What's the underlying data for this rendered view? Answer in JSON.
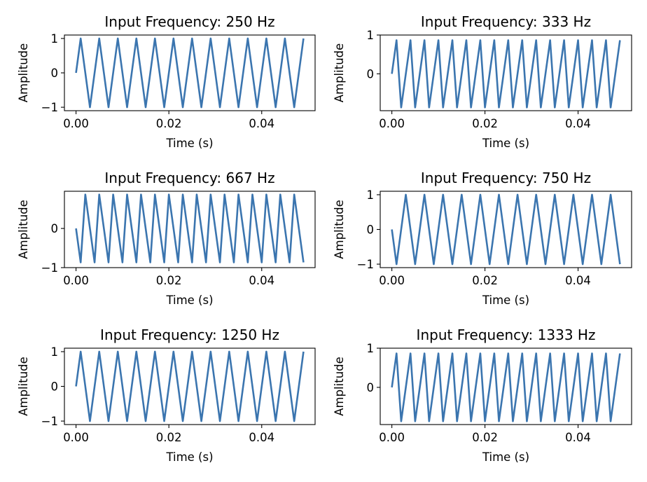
{
  "figure": {
    "background": "#ffffff",
    "line_color": "#3b75af"
  },
  "chart_data": [
    {
      "type": "line",
      "title": "Input Frequency: 250 Hz",
      "xlabel": "Time (s)",
      "ylabel": "Amplitude",
      "xlim": [
        -0.0025,
        0.0515
      ],
      "ylim": [
        -1.1,
        1.1
      ],
      "xticks": [
        0.0,
        0.02,
        0.04
      ],
      "xtick_labels": [
        "0.00",
        "0.02",
        "0.04"
      ],
      "yticks": [
        -1,
        0,
        1
      ],
      "ytick_labels": [
        "−1",
        "0",
        "1"
      ],
      "series": [
        {
          "x": [
            0,
            0.001,
            0.002,
            0.003,
            0.004,
            0.005,
            0.006,
            0.007,
            0.008,
            0.009,
            0.01,
            0.011,
            0.012,
            0.013,
            0.014,
            0.015,
            0.016,
            0.017,
            0.018,
            0.019,
            0.02,
            0.021,
            0.022,
            0.023,
            0.024,
            0.025,
            0.026,
            0.027,
            0.028,
            0.029,
            0.03,
            0.031,
            0.032,
            0.033,
            0.034,
            0.035,
            0.036,
            0.037,
            0.038,
            0.039,
            0.04,
            0.041,
            0.042,
            0.043,
            0.044,
            0.045,
            0.046,
            0.047,
            0.048,
            0.049
          ],
          "y": [
            0,
            1,
            0,
            -1,
            0,
            1,
            0,
            -1,
            0,
            1,
            0,
            -1,
            0,
            1,
            0,
            -1,
            0,
            1,
            0,
            -1,
            0,
            1,
            0,
            -1,
            0,
            1,
            0,
            -1,
            0,
            1,
            0,
            -1,
            0,
            1,
            0,
            -1,
            0,
            1,
            0,
            -1,
            0,
            1,
            0,
            -1,
            0,
            1,
            0,
            -1,
            0,
            1
          ]
        }
      ]
    },
    {
      "type": "line",
      "title": "Input Frequency: 333 Hz",
      "xlabel": "Time (s)",
      "ylabel": "Amplitude",
      "xlim": [
        -0.0025,
        0.0515
      ],
      "ylim": [
        -0.95,
        1.0
      ],
      "xticks": [
        0.0,
        0.02,
        0.04
      ],
      "xtick_labels": [
        "0.00",
        "0.02",
        "0.04"
      ],
      "yticks": [
        0,
        1
      ],
      "ytick_labels": [
        "0",
        "1"
      ],
      "series": [
        {
          "x": [
            0,
            0.001,
            0.002,
            0.003,
            0.004,
            0.005,
            0.006,
            0.007,
            0.008,
            0.009,
            0.01,
            0.011,
            0.012,
            0.013,
            0.014,
            0.015,
            0.016,
            0.017,
            0.018,
            0.019,
            0.02,
            0.021,
            0.022,
            0.023,
            0.024,
            0.025,
            0.026,
            0.027,
            0.028,
            0.029,
            0.03,
            0.031,
            0.032,
            0.033,
            0.034,
            0.035,
            0.036,
            0.037,
            0.038,
            0.039,
            0.04,
            0.041,
            0.042,
            0.043,
            0.044,
            0.045,
            0.046,
            0.047,
            0.048,
            0.049
          ],
          "y": [
            0,
            0.866,
            -0.866,
            0,
            0.866,
            -0.866,
            0,
            0.866,
            -0.866,
            0,
            0.866,
            -0.866,
            0,
            0.866,
            -0.866,
            0,
            0.866,
            -0.866,
            0,
            0.866,
            -0.866,
            0,
            0.866,
            -0.866,
            0,
            0.866,
            -0.866,
            0,
            0.866,
            -0.866,
            0,
            0.866,
            -0.866,
            0,
            0.866,
            -0.866,
            0,
            0.866,
            -0.866,
            0,
            0.866,
            -0.866,
            0,
            0.866,
            -0.866,
            0,
            0.866,
            -0.866,
            0,
            0.866
          ]
        }
      ]
    },
    {
      "type": "line",
      "title": "Input Frequency: 667 Hz",
      "xlabel": "Time (s)",
      "ylabel": "Amplitude",
      "xlim": [
        -0.0025,
        0.0515
      ],
      "ylim": [
        -1.0,
        0.95
      ],
      "xticks": [
        0.0,
        0.02,
        0.04
      ],
      "xtick_labels": [
        "0.00",
        "0.02",
        "0.04"
      ],
      "yticks": [
        -1,
        0
      ],
      "ytick_labels": [
        "−1",
        "0"
      ],
      "series": [
        {
          "x": [
            0,
            0.001,
            0.002,
            0.003,
            0.004,
            0.005,
            0.006,
            0.007,
            0.008,
            0.009,
            0.01,
            0.011,
            0.012,
            0.013,
            0.014,
            0.015,
            0.016,
            0.017,
            0.018,
            0.019,
            0.02,
            0.021,
            0.022,
            0.023,
            0.024,
            0.025,
            0.026,
            0.027,
            0.028,
            0.029,
            0.03,
            0.031,
            0.032,
            0.033,
            0.034,
            0.035,
            0.036,
            0.037,
            0.038,
            0.039,
            0.04,
            0.041,
            0.042,
            0.043,
            0.044,
            0.045,
            0.046,
            0.047,
            0.048,
            0.049
          ],
          "y": [
            0,
            -0.866,
            0.866,
            0,
            -0.866,
            0.866,
            0,
            -0.866,
            0.866,
            0,
            -0.866,
            0.866,
            0,
            -0.866,
            0.866,
            0,
            -0.866,
            0.866,
            0,
            -0.866,
            0.866,
            0,
            -0.866,
            0.866,
            0,
            -0.866,
            0.866,
            0,
            -0.866,
            0.866,
            0,
            -0.866,
            0.866,
            0,
            -0.866,
            0.866,
            0,
            -0.866,
            0.866,
            0,
            -0.866,
            0.866,
            0,
            -0.866,
            0.866,
            0,
            -0.866,
            0.866,
            0,
            -0.866
          ]
        }
      ]
    },
    {
      "type": "line",
      "title": "Input Frequency: 750 Hz",
      "xlabel": "Time (s)",
      "ylabel": "Amplitude",
      "xlim": [
        -0.0025,
        0.0515
      ],
      "ylim": [
        -1.1,
        1.1
      ],
      "xticks": [
        0.0,
        0.02,
        0.04
      ],
      "xtick_labels": [
        "0.00",
        "0.02",
        "0.04"
      ],
      "yticks": [
        -1,
        0,
        1
      ],
      "ytick_labels": [
        "−1",
        "0",
        "1"
      ],
      "series": [
        {
          "x": [
            0,
            0.001,
            0.002,
            0.003,
            0.004,
            0.005,
            0.006,
            0.007,
            0.008,
            0.009,
            0.01,
            0.011,
            0.012,
            0.013,
            0.014,
            0.015,
            0.016,
            0.017,
            0.018,
            0.019,
            0.02,
            0.021,
            0.022,
            0.023,
            0.024,
            0.025,
            0.026,
            0.027,
            0.028,
            0.029,
            0.03,
            0.031,
            0.032,
            0.033,
            0.034,
            0.035,
            0.036,
            0.037,
            0.038,
            0.039,
            0.04,
            0.041,
            0.042,
            0.043,
            0.044,
            0.045,
            0.046,
            0.047,
            0.048,
            0.049
          ],
          "y": [
            0,
            -1,
            0,
            1,
            0,
            -1,
            0,
            1,
            0,
            -1,
            0,
            1,
            0,
            -1,
            0,
            1,
            0,
            -1,
            0,
            1,
            0,
            -1,
            0,
            1,
            0,
            -1,
            0,
            1,
            0,
            -1,
            0,
            1,
            0,
            -1,
            0,
            1,
            0,
            -1,
            0,
            1,
            0,
            -1,
            0,
            1,
            0,
            -1,
            0,
            1,
            0,
            -1
          ]
        }
      ]
    },
    {
      "type": "line",
      "title": "Input Frequency: 1250 Hz",
      "xlabel": "Time (s)",
      "ylabel": "Amplitude",
      "xlim": [
        -0.0025,
        0.0515
      ],
      "ylim": [
        -1.1,
        1.1
      ],
      "xticks": [
        0.0,
        0.02,
        0.04
      ],
      "xtick_labels": [
        "0.00",
        "0.02",
        "0.04"
      ],
      "yticks": [
        -1,
        0,
        1
      ],
      "ytick_labels": [
        "−1",
        "0",
        "1"
      ],
      "series": [
        {
          "x": [
            0,
            0.001,
            0.002,
            0.003,
            0.004,
            0.005,
            0.006,
            0.007,
            0.008,
            0.009,
            0.01,
            0.011,
            0.012,
            0.013,
            0.014,
            0.015,
            0.016,
            0.017,
            0.018,
            0.019,
            0.02,
            0.021,
            0.022,
            0.023,
            0.024,
            0.025,
            0.026,
            0.027,
            0.028,
            0.029,
            0.03,
            0.031,
            0.032,
            0.033,
            0.034,
            0.035,
            0.036,
            0.037,
            0.038,
            0.039,
            0.04,
            0.041,
            0.042,
            0.043,
            0.044,
            0.045,
            0.046,
            0.047,
            0.048,
            0.049
          ],
          "y": [
            0,
            1,
            0,
            -1,
            0,
            1,
            0,
            -1,
            0,
            1,
            0,
            -1,
            0,
            1,
            0,
            -1,
            0,
            1,
            0,
            -1,
            0,
            1,
            0,
            -1,
            0,
            1,
            0,
            -1,
            0,
            1,
            0,
            -1,
            0,
            1,
            0,
            -1,
            0,
            1,
            0,
            -1,
            0,
            1,
            0,
            -1,
            0,
            1,
            0,
            -1,
            0,
            1
          ]
        }
      ]
    },
    {
      "type": "line",
      "title": "Input Frequency: 1333 Hz",
      "xlabel": "Time (s)",
      "ylabel": "Amplitude",
      "xlim": [
        -0.0025,
        0.0515
      ],
      "ylim": [
        -0.95,
        1.0
      ],
      "xticks": [
        0.0,
        0.02,
        0.04
      ],
      "xtick_labels": [
        "0.00",
        "0.02",
        "0.04"
      ],
      "yticks": [
        0,
        1
      ],
      "ytick_labels": [
        "0",
        "1"
      ],
      "series": [
        {
          "x": [
            0,
            0.001,
            0.002,
            0.003,
            0.004,
            0.005,
            0.006,
            0.007,
            0.008,
            0.009,
            0.01,
            0.011,
            0.012,
            0.013,
            0.014,
            0.015,
            0.016,
            0.017,
            0.018,
            0.019,
            0.02,
            0.021,
            0.022,
            0.023,
            0.024,
            0.025,
            0.026,
            0.027,
            0.028,
            0.029,
            0.03,
            0.031,
            0.032,
            0.033,
            0.034,
            0.035,
            0.036,
            0.037,
            0.038,
            0.039,
            0.04,
            0.041,
            0.042,
            0.043,
            0.044,
            0.045,
            0.046,
            0.047,
            0.048,
            0.049
          ],
          "y": [
            0,
            0.866,
            -0.866,
            0,
            0.866,
            -0.866,
            0,
            0.866,
            -0.866,
            0,
            0.866,
            -0.866,
            0,
            0.866,
            -0.866,
            0,
            0.866,
            -0.866,
            0,
            0.866,
            -0.866,
            0,
            0.866,
            -0.866,
            0,
            0.866,
            -0.866,
            0,
            0.866,
            -0.866,
            0,
            0.866,
            -0.866,
            0,
            0.866,
            -0.866,
            0,
            0.866,
            -0.866,
            0,
            0.866,
            -0.866,
            0,
            0.866,
            -0.866,
            0,
            0.866,
            -0.866,
            0,
            0.866
          ]
        }
      ]
    }
  ]
}
